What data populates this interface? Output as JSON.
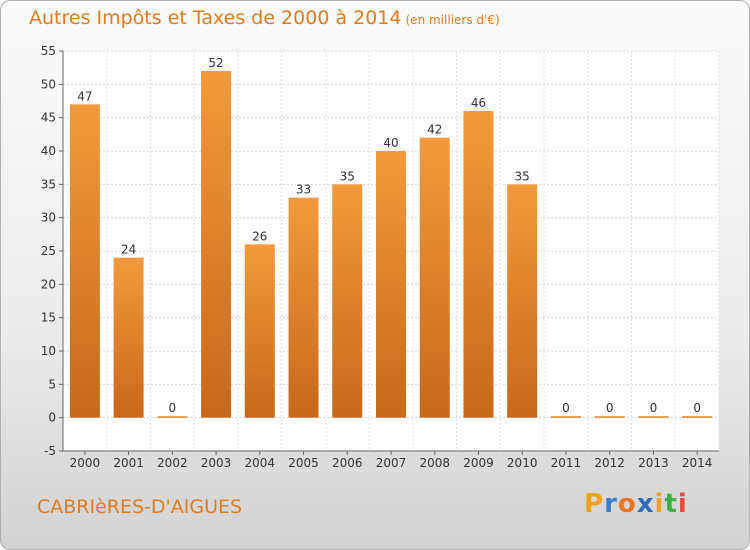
{
  "header": {
    "title": "Autres Impôts et Taxes de 2000 à 2014",
    "unit": "(en milliers d'€)"
  },
  "footer": {
    "commune": "CABRIèRES-D'AIGUES",
    "brand": [
      "P",
      "r",
      "o",
      "x",
      "i",
      "t",
      "i"
    ],
    "brand_colors": [
      "#f0a21c",
      "#3a7fc4",
      "#e87722",
      "#2a6fb8",
      "#f0a21c",
      "#3fae49",
      "#e84b3c"
    ]
  },
  "chart_data": {
    "type": "bar",
    "categories": [
      "2000",
      "2001",
      "2002",
      "2003",
      "2004",
      "2005",
      "2006",
      "2007",
      "2008",
      "2009",
      "2010",
      "2011",
      "2012",
      "2013",
      "2014"
    ],
    "values": [
      47,
      24,
      0,
      52,
      26,
      33,
      35,
      40,
      42,
      46,
      35,
      0,
      0,
      0,
      0
    ],
    "ylim": [
      -5,
      55
    ],
    "yticks": [
      -5,
      0,
      5,
      10,
      15,
      20,
      25,
      30,
      35,
      40,
      45,
      50,
      55
    ],
    "grid": true,
    "bar_color": "#f29a3c",
    "bar_color_dark": "#c8681a"
  }
}
